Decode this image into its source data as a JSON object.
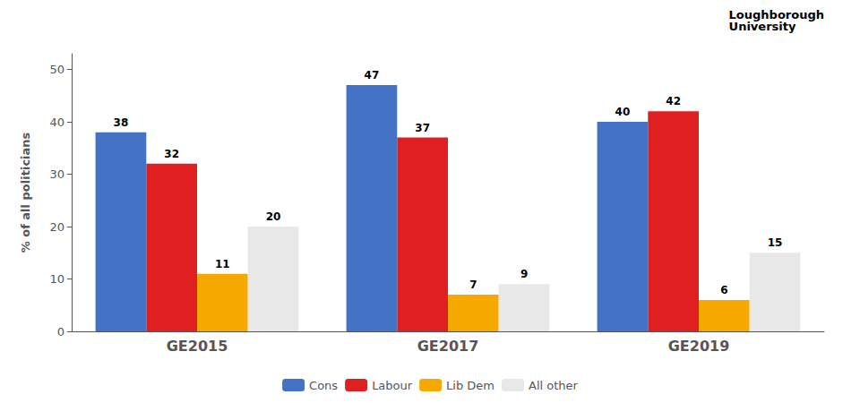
{
  "chart_data": {
    "type": "bar",
    "categories": [
      "GE2015",
      "GE2017",
      "GE2019"
    ],
    "series": [
      {
        "name": "Cons",
        "color": "#4472C4",
        "values": [
          38,
          47,
          40
        ]
      },
      {
        "name": "Labour",
        "color": "#E02020",
        "values": [
          32,
          37,
          42
        ]
      },
      {
        "name": "Lib Dem",
        "color": "#F5A800",
        "values": [
          11,
          7,
          6
        ]
      },
      {
        "name": "All other",
        "color": "#E8E8E8",
        "values": [
          20,
          9,
          15
        ]
      }
    ],
    "ylabel": "% of all politicians",
    "ylim": [
      0,
      53
    ],
    "yticks": [
      0,
      10,
      20,
      30,
      40,
      50
    ],
    "grid": false,
    "legend": "bottom",
    "data_labels": true,
    "annotation": "Loughborough\nUniversity"
  }
}
